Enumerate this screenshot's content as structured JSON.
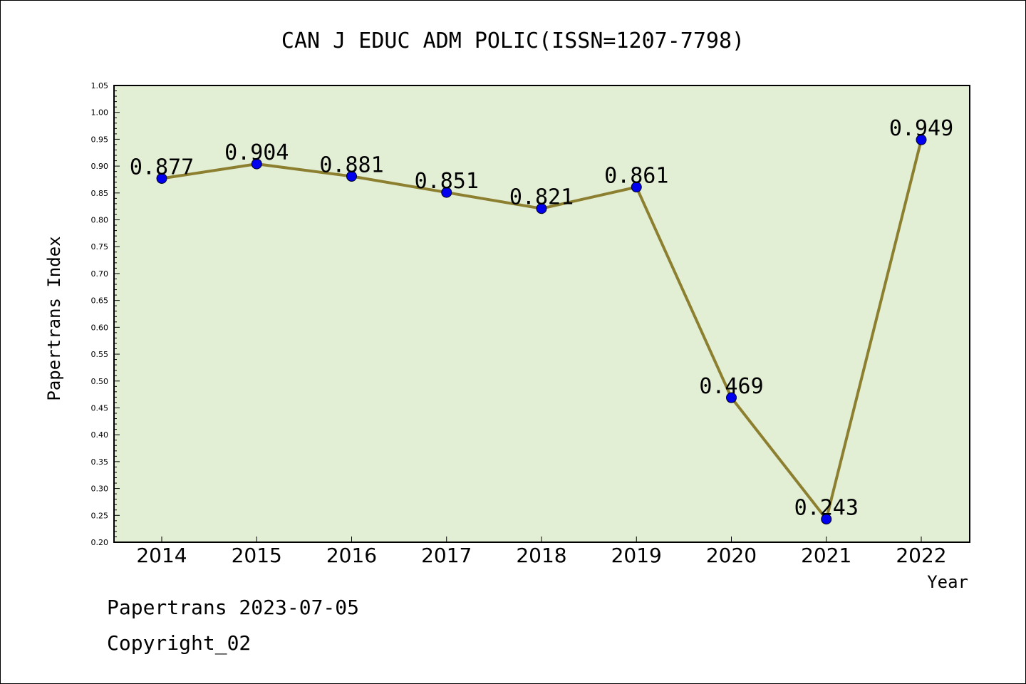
{
  "chart_data": {
    "type": "line",
    "title": "CAN J EDUC ADM POLIC(ISSN=1207-7798)",
    "xlabel": "Year",
    "ylabel": "Papertrans Index",
    "categories": [
      "2014",
      "2015",
      "2016",
      "2017",
      "2018",
      "2019",
      "2020",
      "2021",
      "2022"
    ],
    "values": [
      0.877,
      0.904,
      0.881,
      0.851,
      0.821,
      0.861,
      0.469,
      0.243,
      0.949
    ],
    "data_labels": [
      "0.877",
      "0.904",
      "0.881",
      "0.851",
      "0.821",
      "0.861",
      "0.469",
      "0.243",
      "0.949"
    ],
    "ylim": [
      0.2,
      1.05
    ],
    "yticks": [
      "0.20",
      "0.25",
      "0.30",
      "0.35",
      "0.40",
      "0.45",
      "0.50",
      "0.55",
      "0.60",
      "0.65",
      "0.70",
      "0.75",
      "0.80",
      "0.85",
      "0.90",
      "0.95",
      "1.00",
      "1.05"
    ],
    "grid": false,
    "colors": {
      "plot_background": "#e2efd5",
      "line": "#8c8030",
      "marker": "#0000ee"
    }
  },
  "footer": {
    "line1": "Papertrans 2023-07-05",
    "line2": "Copyright_02"
  }
}
